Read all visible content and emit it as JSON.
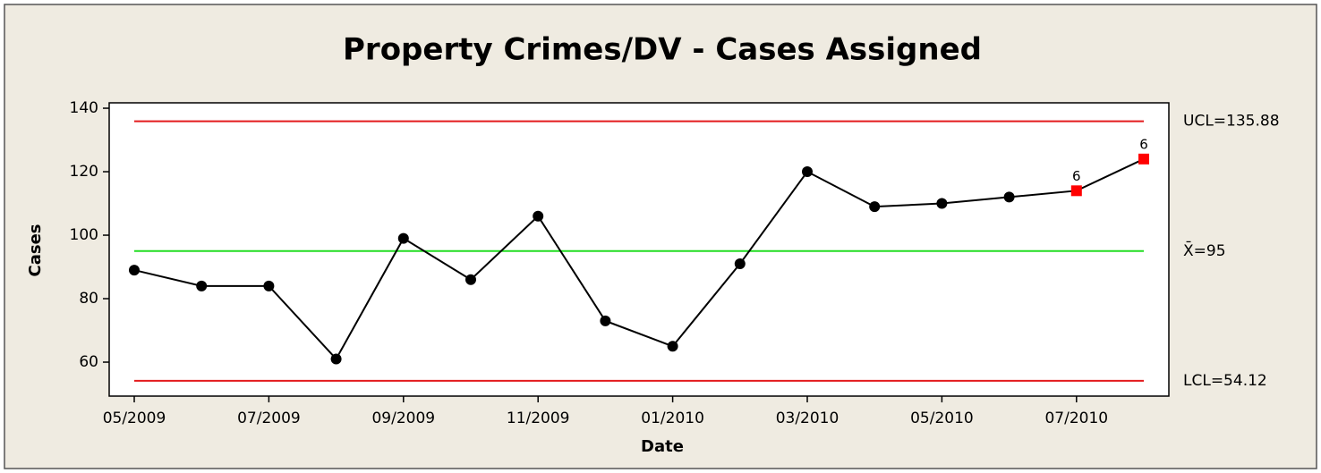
{
  "chart_data": {
    "type": "line",
    "title": "Property Crimes/DV - Cases Assigned",
    "xlabel": "Date",
    "ylabel": "Cases",
    "categories": [
      "05/2009",
      null,
      "07/2009",
      null,
      "09/2009",
      null,
      "11/2009",
      null,
      "01/2010",
      null,
      "03/2010",
      null,
      "05/2010",
      null,
      "07/2010",
      null
    ],
    "series": [
      {
        "name": "Cases",
        "color": "#000000",
        "values": [
          89,
          84,
          84,
          61,
          99,
          86,
          106,
          73,
          65,
          91,
          120,
          109,
          110,
          112,
          114,
          124
        ]
      }
    ],
    "point_labels": [
      null,
      null,
      null,
      null,
      null,
      null,
      null,
      null,
      null,
      null,
      null,
      null,
      null,
      null,
      "6",
      "6"
    ],
    "flag_color": "#ff0000",
    "control_lines": [
      {
        "value": 135.88,
        "label": "UCL=135.88",
        "color": "#e31a1c"
      },
      {
        "value": 95,
        "label": "X̄=95",
        "color": "#22dd22"
      },
      {
        "value": 54.12,
        "label": "LCL=54.12",
        "color": "#e31a1c"
      }
    ],
    "ylim": [
      49.3,
      141.7
    ],
    "yticks": [
      60,
      80,
      100,
      120,
      140
    ],
    "grid": false
  }
}
